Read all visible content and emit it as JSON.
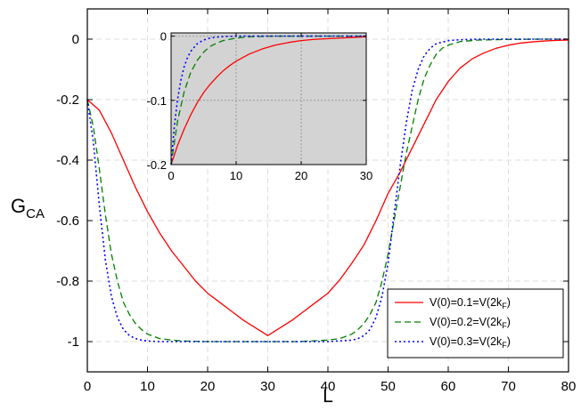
{
  "chart_data": [
    {
      "type": "line",
      "xlabel": "L",
      "ylabel": {
        "main": "G",
        "sub": "CA"
      },
      "xlim": [
        0,
        80
      ],
      "ylim": [
        -1.1,
        0.1
      ],
      "x_ticks": [
        0,
        10,
        20,
        30,
        40,
        50,
        60,
        70,
        80
      ],
      "y_ticks": [
        0,
        -0.2,
        -0.4,
        -0.6,
        -0.8,
        -1
      ],
      "x_tick_labels": [
        "0",
        "10",
        "20",
        "30",
        "40",
        "50",
        "60",
        "70",
        "80"
      ],
      "y_tick_labels": [
        "0",
        "-0.2",
        "-0.4",
        "-0.6",
        "-0.8",
        "-1"
      ],
      "grid": true,
      "legend_position": "bottom-right",
      "series": [
        {
          "legend": {
            "a": "V(0)=0.1=V(2k",
            "sub": "F",
            "b": ")"
          },
          "color": "#ff0000",
          "dash": "solid",
          "x": [
            0,
            2,
            4,
            6,
            8,
            10,
            12,
            14,
            16,
            18,
            20,
            22,
            24,
            26,
            28,
            30,
            32,
            34,
            36,
            38,
            40,
            42,
            44,
            46,
            48,
            50,
            52,
            54,
            56,
            58,
            60,
            62,
            64,
            66,
            68,
            70,
            72,
            74,
            76,
            78,
            80
          ],
          "y": [
            -0.2,
            -0.235,
            -0.31,
            -0.4,
            -0.49,
            -0.57,
            -0.64,
            -0.7,
            -0.75,
            -0.8,
            -0.84,
            -0.87,
            -0.9,
            -0.93,
            -0.955,
            -0.98,
            -0.955,
            -0.93,
            -0.9,
            -0.87,
            -0.84,
            -0.795,
            -0.74,
            -0.68,
            -0.6,
            -0.51,
            -0.44,
            -0.36,
            -0.28,
            -0.2,
            -0.14,
            -0.095,
            -0.065,
            -0.045,
            -0.03,
            -0.02,
            -0.013,
            -0.009,
            -0.006,
            -0.004,
            -0.003
          ]
        },
        {
          "legend": {
            "a": "V(0)=0.2=V(2k",
            "sub": "F",
            "b": ")"
          },
          "color": "#008000",
          "dash": "7,4",
          "x": [
            0,
            1,
            2,
            3,
            4,
            5,
            6,
            7,
            8,
            9,
            10,
            12,
            14,
            16,
            18,
            20,
            25,
            30,
            35,
            40,
            42,
            44,
            45,
            46,
            47,
            48,
            49,
            50,
            51,
            52,
            53,
            54,
            55,
            56,
            57,
            58,
            59,
            60,
            62,
            65,
            70,
            75,
            80
          ],
          "y": [
            -0.2,
            -0.29,
            -0.43,
            -0.58,
            -0.71,
            -0.8,
            -0.87,
            -0.91,
            -0.94,
            -0.96,
            -0.975,
            -0.99,
            -0.995,
            -0.998,
            -0.999,
            -1.0,
            -1.0,
            -1.0,
            -1.0,
            -0.995,
            -0.99,
            -0.975,
            -0.96,
            -0.94,
            -0.91,
            -0.87,
            -0.8,
            -0.71,
            -0.6,
            -0.49,
            -0.38,
            -0.29,
            -0.2,
            -0.13,
            -0.085,
            -0.05,
            -0.03,
            -0.02,
            -0.008,
            -0.003,
            -0.001,
            0,
            0
          ]
        },
        {
          "legend": {
            "a": "V(0)=0.3=V(2k",
            "sub": "F",
            "b": ")"
          },
          "color": "#0000ff",
          "dash": "2,3",
          "x": [
            0,
            1,
            2,
            3,
            4,
            5,
            6,
            7,
            8,
            9,
            10,
            12,
            15,
            20,
            30,
            40,
            44,
            45,
            46,
            47,
            48,
            49,
            50,
            51,
            52,
            53,
            54,
            55,
            56,
            57,
            58,
            60,
            62,
            65,
            70,
            80
          ],
          "y": [
            -0.2,
            -0.34,
            -0.55,
            -0.73,
            -0.85,
            -0.92,
            -0.96,
            -0.98,
            -0.99,
            -0.995,
            -0.998,
            -1.0,
            -1.0,
            -1.0,
            -1.0,
            -1.0,
            -0.995,
            -0.99,
            -0.98,
            -0.96,
            -0.92,
            -0.85,
            -0.74,
            -0.58,
            -0.42,
            -0.28,
            -0.17,
            -0.1,
            -0.055,
            -0.03,
            -0.015,
            -0.005,
            -0.002,
            0,
            0,
            0
          ]
        }
      ]
    },
    {
      "type": "line",
      "role": "inset",
      "xlim": [
        0,
        30
      ],
      "ylim": [
        -0.2,
        0.005
      ],
      "x_ticks": [
        0,
        10,
        20,
        30
      ],
      "y_ticks": [
        0,
        -0.1,
        -0.2
      ],
      "x_tick_labels": [
        "0",
        "10",
        "20",
        "30"
      ],
      "y_tick_labels": [
        "0",
        "-0.1",
        "-0.2"
      ],
      "grid": true,
      "background": "#d3d3d3",
      "series": [
        {
          "color": "#ff0000",
          "dash": "solid",
          "x": [
            0,
            1,
            2,
            3,
            4,
            5,
            6,
            7,
            8,
            9,
            10,
            12,
            14,
            16,
            18,
            20,
            22,
            24,
            26,
            28,
            30
          ],
          "y": [
            -0.2,
            -0.17,
            -0.145,
            -0.123,
            -0.104,
            -0.088,
            -0.075,
            -0.064,
            -0.054,
            -0.046,
            -0.039,
            -0.028,
            -0.02,
            -0.014,
            -0.01,
            -0.007,
            -0.005,
            -0.004,
            -0.003,
            -0.002,
            -0.001
          ]
        },
        {
          "color": "#008000",
          "dash": "7,4",
          "x": [
            0,
            1,
            2,
            3,
            4,
            5,
            6,
            7,
            8,
            9,
            10,
            12,
            14,
            16,
            20,
            25,
            30
          ],
          "y": [
            -0.2,
            -0.132,
            -0.087,
            -0.057,
            -0.038,
            -0.025,
            -0.016,
            -0.011,
            -0.007,
            -0.005,
            -0.003,
            -0.001,
            -0.0005,
            0,
            0,
            0,
            0
          ]
        },
        {
          "color": "#0000ff",
          "dash": "2,3",
          "x": [
            0,
            0.5,
            1,
            1.5,
            2,
            2.5,
            3,
            4,
            5,
            6,
            7,
            8,
            10,
            15,
            20,
            30
          ],
          "y": [
            -0.2,
            -0.14,
            -0.098,
            -0.069,
            -0.048,
            -0.034,
            -0.024,
            -0.012,
            -0.006,
            -0.003,
            -0.0015,
            -0.0008,
            0,
            0,
            0,
            0
          ]
        }
      ]
    }
  ]
}
